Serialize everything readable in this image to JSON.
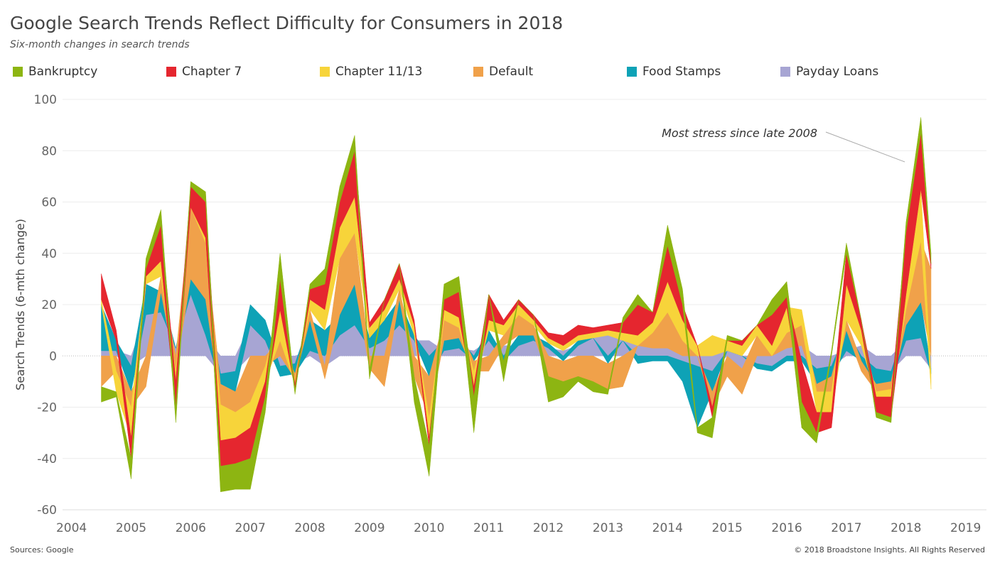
{
  "title": "Google Search Trends Reflect Difficulty for Consumers in 2018",
  "subtitle": "Six-month changes in search trends",
  "footer": {
    "source": "Sources: Google",
    "copyright": "© 2018 Broadstone Insights. All Rights Reserved"
  },
  "chart_data": {
    "type": "area",
    "stacking": "diverging",
    "title": "Google Search Trends Reflect Difficulty for Consumers in 2018",
    "subtitle": "Six-month changes in search trends",
    "ylabel": "Search Trends (6-mth change)",
    "xlabel": "",
    "ylim": [
      -60,
      100
    ],
    "xlim": [
      2004,
      2019
    ],
    "y_ticks": [
      100,
      80,
      60,
      40,
      20,
      0,
      -20,
      -40,
      -60
    ],
    "x_ticks": [
      2004,
      2005,
      2006,
      2007,
      2008,
      2009,
      2010,
      2011,
      2012,
      2013,
      2014,
      2015,
      2016,
      2017,
      2018,
      2019
    ],
    "grid": "horizontal",
    "legend_position": "top",
    "annotation": {
      "text": "Most stress since late 2008",
      "x": 2018.0,
      "y": 78
    },
    "x": [
      2004.5,
      2004.75,
      2005.0,
      2005.25,
      2005.5,
      2005.75,
      2006.0,
      2006.25,
      2006.5,
      2006.75,
      2007.0,
      2007.25,
      2007.5,
      2007.75,
      2008.0,
      2008.25,
      2008.5,
      2008.75,
      2009.0,
      2009.25,
      2009.5,
      2009.75,
      2010.0,
      2010.25,
      2010.5,
      2010.75,
      2011.0,
      2011.25,
      2011.5,
      2011.75,
      2012.0,
      2012.25,
      2012.5,
      2012.75,
      2013.0,
      2013.25,
      2013.5,
      2013.75,
      2014.0,
      2014.25,
      2014.5,
      2014.75,
      2015.0,
      2015.25,
      2015.5,
      2015.75,
      2016.0,
      2016.25,
      2016.5,
      2016.75,
      2017.0,
      2017.25,
      2017.5,
      2017.75,
      2018.0,
      2018.25,
      2018.42
    ],
    "series": [
      {
        "name": "Payday Loans",
        "color": "#a7a5d3",
        "values": [
          2,
          2,
          -4,
          16,
          17,
          3,
          24,
          8,
          -7,
          -6,
          12,
          6,
          -4,
          -3,
          2,
          -4,
          8,
          12,
          3,
          6,
          12,
          6,
          6,
          2,
          3,
          2,
          6,
          4,
          4,
          6,
          3,
          2,
          4,
          7,
          8,
          6,
          4,
          3,
          3,
          -2,
          -4,
          -6,
          2,
          -5,
          -3,
          -4,
          3,
          4,
          -5,
          -4,
          2,
          4,
          -5,
          -6,
          6,
          7,
          -5
        ]
      },
      {
        "name": "Food Stamps",
        "color": "#0ea2b6",
        "values": [
          18,
          4,
          -10,
          12,
          8,
          0,
          6,
          14,
          -4,
          -8,
          8,
          8,
          -4,
          -4,
          12,
          10,
          8,
          16,
          4,
          8,
          10,
          2,
          -8,
          4,
          4,
          -2,
          4,
          -2,
          4,
          2,
          2,
          -2,
          2,
          0,
          -3,
          0,
          -3,
          -2,
          -2,
          -8,
          -24,
          -8,
          0,
          0,
          -2,
          -2,
          -2,
          -2,
          -6,
          -4,
          8,
          -2,
          -6,
          -4,
          6,
          14,
          -2
        ]
      },
      {
        "name": "Default",
        "color": "#f0a14a",
        "values": [
          -12,
          -6,
          -6,
          -12,
          6,
          -6,
          28,
          22,
          -8,
          -8,
          -18,
          -4,
          6,
          -2,
          4,
          -5,
          22,
          20,
          -5,
          -12,
          4,
          -8,
          -16,
          8,
          4,
          -4,
          -6,
          4,
          8,
          4,
          -8,
          -8,
          -8,
          -10,
          -10,
          -12,
          0,
          6,
          14,
          6,
          0,
          -6,
          -8,
          -10,
          8,
          0,
          6,
          8,
          -3,
          -6,
          4,
          -4,
          -3,
          -3,
          6,
          24,
          34
        ]
      },
      {
        "name": "Chapter 11/13",
        "color": "#f7d43a",
        "values": [
          2,
          -8,
          -12,
          3,
          6,
          -4,
          0,
          2,
          -14,
          -10,
          -10,
          -6,
          12,
          -2,
          4,
          8,
          12,
          14,
          4,
          4,
          4,
          4,
          -8,
          4,
          4,
          -6,
          4,
          4,
          4,
          2,
          2,
          2,
          2,
          2,
          2,
          3,
          4,
          4,
          12,
          8,
          4,
          8,
          4,
          4,
          4,
          4,
          10,
          6,
          -8,
          -8,
          14,
          6,
          -2,
          -3,
          6,
          20,
          -6
        ]
      },
      {
        "name": "Chapter 7",
        "color": "#e5262f",
        "values": [
          10,
          4,
          -8,
          3,
          14,
          -10,
          8,
          14,
          -10,
          -10,
          -12,
          -6,
          12,
          -2,
          4,
          10,
          10,
          18,
          2,
          4,
          6,
          2,
          -3,
          4,
          10,
          -4,
          10,
          2,
          2,
          2,
          2,
          4,
          4,
          2,
          2,
          4,
          12,
          4,
          14,
          6,
          0,
          -4,
          0,
          2,
          0,
          12,
          4,
          -16,
          -8,
          -6,
          12,
          4,
          -6,
          -8,
          24,
          22,
          2
        ]
      },
      {
        "name": "Bankruptcy",
        "color": "#8db512",
        "values": [
          -6,
          -2,
          -8,
          4,
          6,
          -6,
          2,
          4,
          -10,
          -10,
          -12,
          -6,
          10,
          -2,
          2,
          6,
          6,
          6,
          -4,
          0,
          0,
          -10,
          -12,
          6,
          6,
          -14,
          0,
          -8,
          0,
          0,
          -10,
          -6,
          -2,
          -4,
          -2,
          2,
          4,
          0,
          8,
          6,
          -2,
          -8,
          2,
          0,
          0,
          6,
          6,
          -10,
          -4,
          2,
          4,
          0,
          -2,
          -2,
          4,
          6,
          4
        ]
      }
    ]
  }
}
